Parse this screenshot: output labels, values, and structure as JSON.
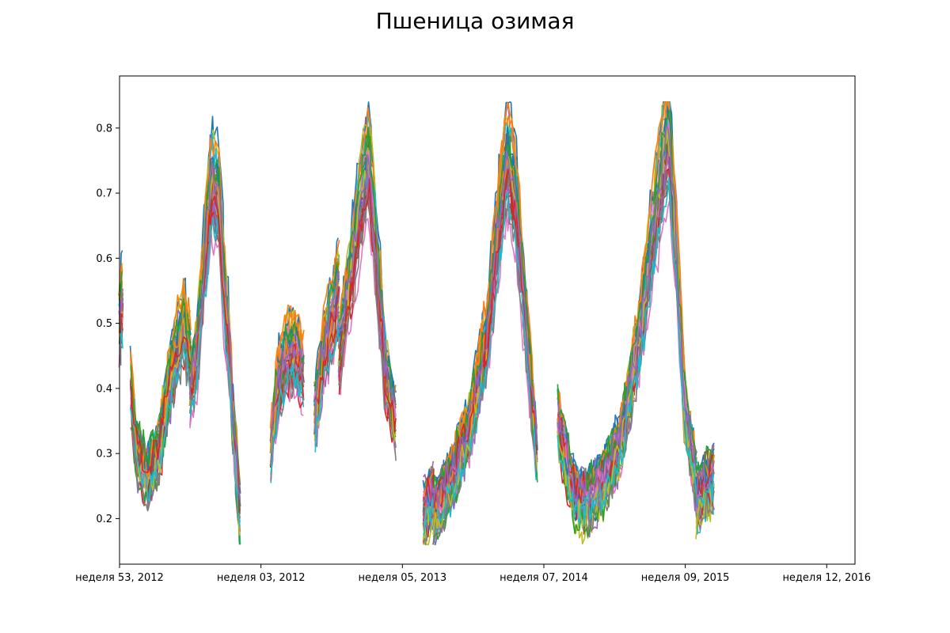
{
  "chart_data": {
    "type": "line",
    "title": "Пшеница озимая",
    "xlabel": "",
    "ylabel": "",
    "grid": false,
    "x_ticks": [
      "неделя 53, 2012",
      "неделя 03, 2012",
      "неделя 05, 2013",
      "неделя 07, 2014",
      "неделя 09, 2015",
      "неделя 12, 2016"
    ],
    "xlim": [
      0,
      5.2
    ],
    "ylim": [
      0.13,
      0.88
    ],
    "y_ticks": [
      0.2,
      0.3,
      0.4,
      0.5,
      0.6,
      0.7,
      0.8
    ],
    "colors": [
      "#1f77b4",
      "#ff7f0e",
      "#2ca02c",
      "#d62728",
      "#9467bd",
      "#8c564b",
      "#e377c2",
      "#7f7f7f",
      "#bcbd22",
      "#17becf"
    ],
    "series_count": 45,
    "segments": [
      {
        "x0": 0.0,
        "x1": 0.02,
        "points": [
          [
            0.0,
            0.5
          ],
          [
            0.02,
            0.53
          ]
        ]
      },
      {
        "x0": 0.08,
        "x1": 0.5,
        "points": [
          [
            0.08,
            0.4
          ],
          [
            0.12,
            0.3
          ],
          [
            0.2,
            0.26
          ],
          [
            0.28,
            0.3
          ],
          [
            0.35,
            0.4
          ],
          [
            0.4,
            0.45
          ],
          [
            0.45,
            0.5
          ],
          [
            0.5,
            0.45
          ]
        ]
      },
      {
        "x0": 0.5,
        "x1": 0.8,
        "points": [
          [
            0.5,
            0.4
          ],
          [
            0.55,
            0.45
          ],
          [
            0.6,
            0.6
          ],
          [
            0.65,
            0.72
          ],
          [
            0.7,
            0.7
          ],
          [
            0.74,
            0.55
          ],
          [
            0.78,
            0.45
          ],
          [
            0.8,
            0.35
          ]
        ]
      },
      {
        "x0": 0.8,
        "x1": 0.85,
        "points": [
          [
            0.8,
            0.35
          ],
          [
            0.82,
            0.3
          ],
          [
            0.85,
            0.2
          ]
        ]
      },
      {
        "x0": 1.07,
        "x1": 1.3,
        "points": [
          [
            1.07,
            0.3
          ],
          [
            1.12,
            0.4
          ],
          [
            1.18,
            0.45
          ],
          [
            1.24,
            0.45
          ],
          [
            1.3,
            0.42
          ]
        ]
      },
      {
        "x0": 1.38,
        "x1": 1.55,
        "points": [
          [
            1.38,
            0.35
          ],
          [
            1.44,
            0.45
          ],
          [
            1.5,
            0.5
          ],
          [
            1.55,
            0.55
          ]
        ]
      },
      {
        "x0": 1.55,
        "x1": 1.95,
        "points": [
          [
            1.55,
            0.45
          ],
          [
            1.62,
            0.55
          ],
          [
            1.7,
            0.68
          ],
          [
            1.76,
            0.76
          ],
          [
            1.82,
            0.6
          ],
          [
            1.88,
            0.42
          ],
          [
            1.95,
            0.35
          ]
        ]
      },
      {
        "x0": 2.15,
        "x1": 2.22,
        "points": [
          [
            2.15,
            0.2
          ],
          [
            2.18,
            0.22
          ],
          [
            2.22,
            0.23
          ]
        ]
      },
      {
        "x0": 2.22,
        "x1": 2.95,
        "points": [
          [
            2.22,
            0.2
          ],
          [
            2.35,
            0.26
          ],
          [
            2.48,
            0.34
          ],
          [
            2.6,
            0.48
          ],
          [
            2.68,
            0.65
          ],
          [
            2.74,
            0.76
          ],
          [
            2.8,
            0.7
          ],
          [
            2.87,
            0.5
          ],
          [
            2.95,
            0.3
          ]
        ]
      },
      {
        "x0": 3.1,
        "x1": 3.3,
        "points": [
          [
            3.1,
            0.35
          ],
          [
            3.16,
            0.28
          ],
          [
            3.22,
            0.23
          ],
          [
            3.3,
            0.22
          ]
        ]
      },
      {
        "x0": 3.3,
        "x1": 4.08,
        "points": [
          [
            3.3,
            0.22
          ],
          [
            3.42,
            0.25
          ],
          [
            3.55,
            0.32
          ],
          [
            3.68,
            0.48
          ],
          [
            3.8,
            0.68
          ],
          [
            3.88,
            0.8
          ],
          [
            3.94,
            0.6
          ],
          [
            4.0,
            0.35
          ],
          [
            4.08,
            0.25
          ]
        ]
      },
      {
        "x0": 4.08,
        "x1": 4.2,
        "points": [
          [
            4.08,
            0.22
          ],
          [
            4.14,
            0.25
          ],
          [
            4.2,
            0.26
          ]
        ]
      }
    ]
  }
}
